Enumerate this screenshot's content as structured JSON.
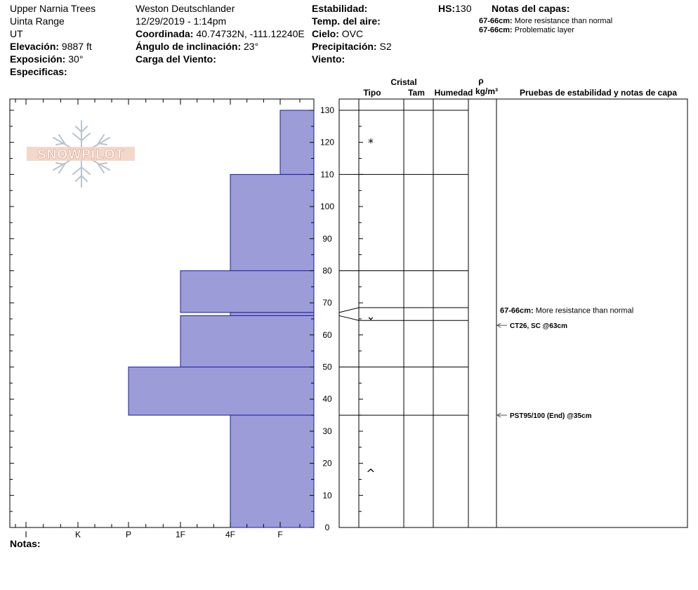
{
  "header": {
    "location": "Upper Narnia Trees",
    "range": "Uinta Range",
    "state": "UT",
    "elevation_label": "Elevación:",
    "elevation_value": "9887 ft",
    "aspect_label": "Exposición:",
    "aspect_value": "30°",
    "specifics_label": "Especificas:",
    "observer": "Weston Deutschlander",
    "datetime": "12/29/2019 - 1:14pm",
    "coord_label": "Coordinada:",
    "coord_value": "40.74732N, -111.12240E",
    "slope_label": "Ángulo de inclinación:",
    "slope_value": "23°",
    "wind_load_label": "Carga del Viento:",
    "stability_label": "Estabilidad:",
    "air_temp_label": "Temp. del aire:",
    "sky_label": "Cielo:",
    "sky_value": "OVC",
    "precip_label": "Precipitación:",
    "precip_value": "S2",
    "wind_label": "Viento:",
    "hs_label": "HS:",
    "hs_value": "130",
    "layer_notes_label": "Notas del capas:",
    "layer_notes": [
      {
        "range": "67-66cm:",
        "text": "More resistance than normal"
      },
      {
        "range": "67-66cm:",
        "text": "Problematic layer"
      }
    ]
  },
  "logo_text": "SNOWPILOT",
  "column_headers": {
    "crystal": "Cristal",
    "type": "Tipo",
    "size": "Tam",
    "humidity": "Humedad",
    "rho": "ρ",
    "density_unit": "kg/m³",
    "tests": "Pruebas de estabilidad y notas de capa"
  },
  "footer": {
    "notes_label": "Notas:"
  },
  "chart_data": {
    "type": "bar",
    "orientation": "horizontal",
    "x_categories": [
      "I",
      "K",
      "P",
      "1F",
      "4F",
      "F"
    ],
    "y_axis": {
      "min": 0,
      "max": 130,
      "step": 10,
      "ticks": [
        0,
        10,
        20,
        30,
        40,
        50,
        60,
        70,
        80,
        90,
        100,
        110,
        120,
        130
      ]
    },
    "hardness_layers": [
      {
        "top": 130,
        "bottom": 110,
        "hardness": "F"
      },
      {
        "top": 110,
        "bottom": 80,
        "hardness": "4F"
      },
      {
        "top": 80,
        "bottom": 67,
        "hardness": "1F"
      },
      {
        "top": 67,
        "bottom": 66,
        "hardness": "4F"
      },
      {
        "top": 66,
        "bottom": 50,
        "hardness": "1F"
      },
      {
        "top": 50,
        "bottom": 35,
        "hardness": "P"
      },
      {
        "top": 35,
        "bottom": 0,
        "hardness": "4F"
      }
    ],
    "bar_color": "#9c9cd8",
    "bar_stroke": "#1c1ca0",
    "layer_boundaries": [
      130,
      110,
      80,
      68.5,
      64.5,
      50,
      35
    ],
    "crystal_symbols": [
      {
        "height": 120,
        "symbol": "*"
      },
      {
        "height": 66,
        "symbol": "⌄"
      },
      {
        "height": 17,
        "symbol": "^"
      }
    ],
    "stability_notes": [
      {
        "height": 66,
        "text": "67-66cm: More resistance than normal",
        "arrow": false
      },
      {
        "height": 63,
        "text": "CT26, SC @63cm",
        "arrow": true
      },
      {
        "height": 35,
        "text": "PST95/100 (End) @35cm",
        "arrow": true
      }
    ]
  }
}
